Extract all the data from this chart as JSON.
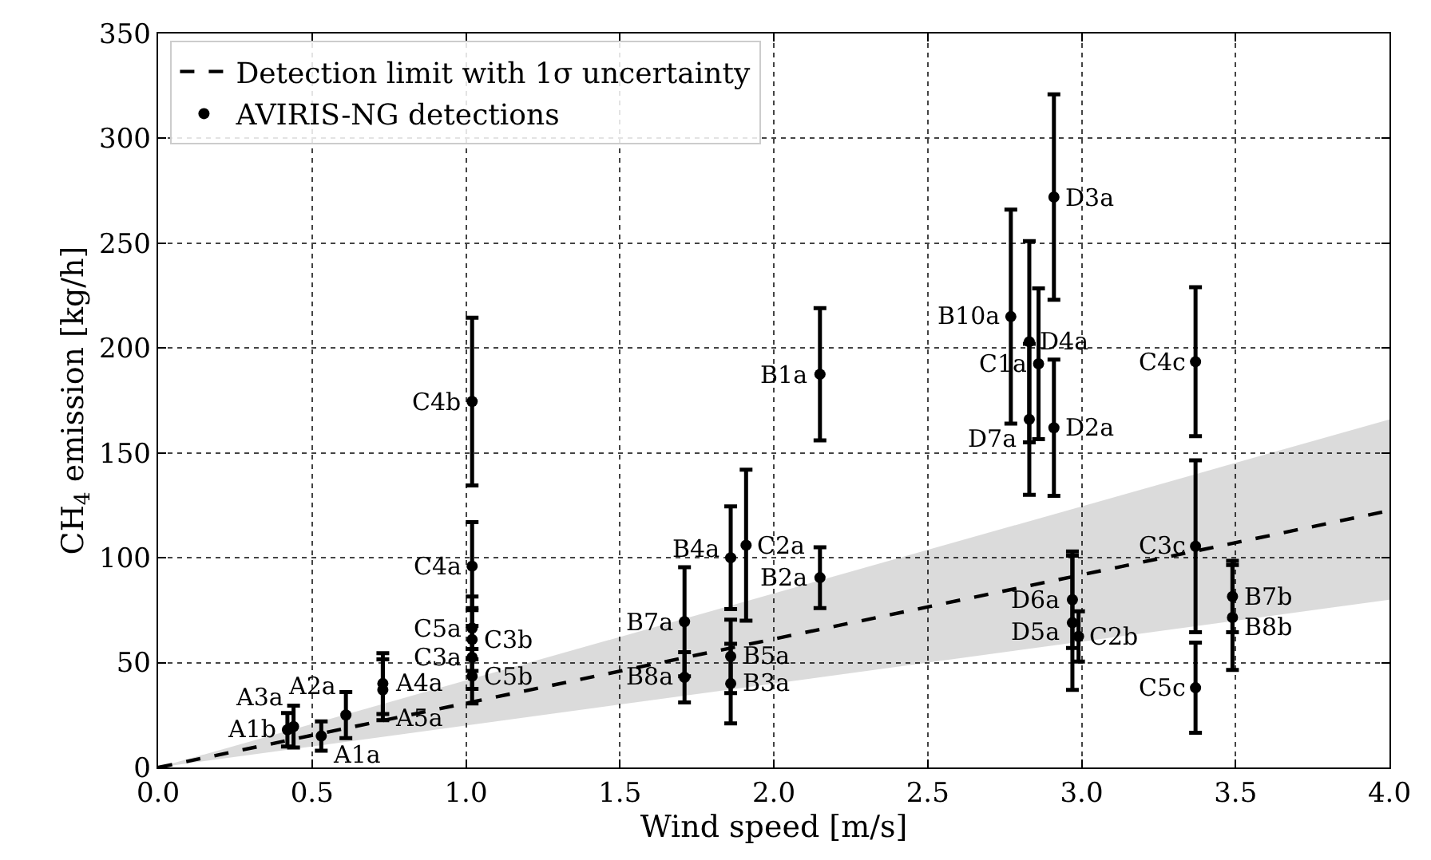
{
  "chart_data": {
    "type": "scatter",
    "xlabel": "Wind speed [m/s]",
    "ylabel": "CH$_{4}$ emission [kg/h]",
    "xlim": [
      0,
      4
    ],
    "xticks": [
      {
        "value": 0,
        "label": "0.0"
      },
      0.5,
      {
        "value": 1,
        "label": "1.0"
      },
      1.5,
      {
        "value": 2,
        "label": "2.0"
      },
      2.5,
      {
        "value": 3,
        "label": "3.0"
      },
      3.5,
      {
        "value": 4,
        "label": "4.0"
      }
    ],
    "ylim": [
      0,
      350
    ],
    "yticks": [
      0,
      50,
      100,
      150,
      200,
      250,
      300,
      350
    ],
    "grid": true,
    "legend": "top left",
    "series": [
      {
        "type": "line",
        "name": "Detection limit with 1σ uncertainty",
        "color": "#000000",
        "line_style": "dashed",
        "marker": "none",
        "x": [
          0,
          4
        ],
        "values": [
          0,
          122.5
        ],
        "lower": [
          0,
          80
        ],
        "upper": [
          0,
          166
        ]
      },
      {
        "name": "AVIRIS-NG detections",
        "color": "#000000",
        "marker": "circle",
        "x": [
          0.42,
          0.44,
          0.53,
          0.61,
          0.73,
          0.73,
          1.02,
          1.02,
          1.02,
          1.02,
          1.02,
          1.02,
          1.71,
          1.71,
          1.86,
          1.86,
          1.86,
          1.91,
          2.15,
          2.15,
          2.77,
          2.83,
          2.83,
          2.86,
          2.91,
          2.91,
          2.97,
          2.97,
          2.99,
          3.37,
          3.37,
          3.37,
          3.49,
          3.49
        ],
        "values": [
          18,
          19.5,
          15,
          25,
          40,
          37,
          96,
          66.5,
          61,
          52.5,
          43.5,
          174.5,
          69.5,
          43,
          100,
          53,
          40,
          106,
          187.5,
          90.5,
          215,
          203,
          166,
          192.5,
          272,
          162,
          80,
          69,
          62.5,
          193.5,
          105.5,
          38,
          81.5,
          71.5
        ],
        "errors": [
          8,
          10,
          7,
          11,
          14.5,
          14.5,
          21,
          15,
          15,
          15,
          13,
          40,
          26,
          12,
          24.5,
          17.5,
          19,
          36,
          31.5,
          14.5,
          51,
          48,
          36,
          36,
          49,
          32.5,
          23,
          32,
          12,
          35.5,
          41,
          21.5,
          17,
          25
        ]
      }
    ],
    "annotations": [
      {
        "text": "A1b",
        "x": 0.42,
        "y": 18
      },
      {
        "text": "A3a",
        "x": 0.44,
        "y": 19.5
      },
      {
        "text": "A1a",
        "x": 0.53,
        "y": 15
      },
      {
        "text": "A2a",
        "x": 0.61,
        "y": 25
      },
      {
        "text": "A4a",
        "x": 0.73,
        "y": 40
      },
      {
        "text": "A5a",
        "x": 0.73,
        "y": 37
      },
      {
        "text": "C4a",
        "x": 1.02,
        "y": 96
      },
      {
        "text": "C5a",
        "x": 1.02,
        "y": 66.5
      },
      {
        "text": "C3b",
        "x": 1.02,
        "y": 61
      },
      {
        "text": "C3a",
        "x": 1.02,
        "y": 52.5
      },
      {
        "text": "C5b",
        "x": 1.02,
        "y": 43.5
      },
      {
        "text": "C4b",
        "x": 1.02,
        "y": 174.5
      },
      {
        "text": "B7a",
        "x": 1.71,
        "y": 69.5
      },
      {
        "text": "B8a",
        "x": 1.71,
        "y": 43
      },
      {
        "text": "B4a",
        "x": 1.86,
        "y": 100
      },
      {
        "text": "B5a",
        "x": 1.86,
        "y": 53
      },
      {
        "text": "B3a",
        "x": 1.86,
        "y": 40
      },
      {
        "text": "C2a",
        "x": 1.91,
        "y": 106
      },
      {
        "text": "B1a",
        "x": 2.15,
        "y": 187.5
      },
      {
        "text": "B2a",
        "x": 2.15,
        "y": 90.5
      },
      {
        "text": "B10a",
        "x": 2.77,
        "y": 215
      },
      {
        "text": "D4a",
        "x": 2.83,
        "y": 203
      },
      {
        "text": "D7a",
        "x": 2.83,
        "y": 166
      },
      {
        "text": "C1a",
        "x": 2.86,
        "y": 192.5
      },
      {
        "text": "D3a",
        "x": 2.91,
        "y": 272
      },
      {
        "text": "D2a",
        "x": 2.91,
        "y": 162
      },
      {
        "text": "D6a",
        "x": 2.97,
        "y": 80
      },
      {
        "text": "D5a",
        "x": 2.97,
        "y": 69
      },
      {
        "text": "C2b",
        "x": 2.99,
        "y": 62.5
      },
      {
        "text": "C4c",
        "x": 3.37,
        "y": 193.5
      },
      {
        "text": "C3c",
        "x": 3.37,
        "y": 105.5
      },
      {
        "text": "C5c",
        "x": 3.37,
        "y": 38
      },
      {
        "text": "B7b",
        "x": 3.49,
        "y": 81.5
      },
      {
        "text": "B8b",
        "x": 3.49,
        "y": 71.5
      }
    ]
  }
}
